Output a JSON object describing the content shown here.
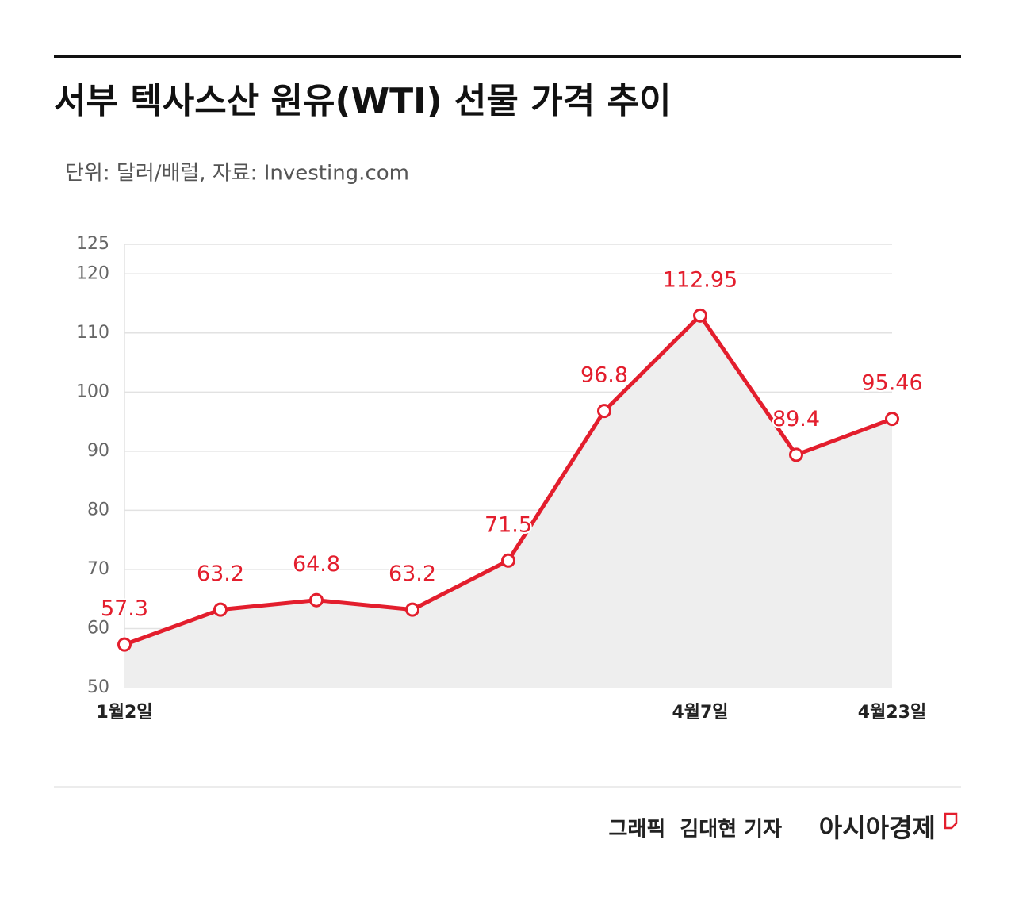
{
  "chart_data": {
    "type": "line",
    "title": "서부 텍사스산 원유(WTI) 선물 가격 추이",
    "subtitle": "단위: 달러/배럴, 자료: Investing.com",
    "categories": [
      "1월2일",
      null,
      null,
      null,
      null,
      null,
      "4월7일",
      null,
      "4월23일"
    ],
    "series": [
      {
        "name": "WTI",
        "color": "#e31e2d",
        "values": [
          57.3,
          63.2,
          64.8,
          63.2,
          71.5,
          96.8,
          112.95,
          89.4,
          95.46
        ]
      }
    ],
    "area_color": "#eeeeee",
    "ylim": [
      50,
      125
    ],
    "yticks": [
      50,
      60,
      70,
      80,
      90,
      100,
      110,
      120,
      125
    ],
    "grid": true,
    "credit": "그래픽  김대현 기자",
    "brand": "아시아경제"
  }
}
